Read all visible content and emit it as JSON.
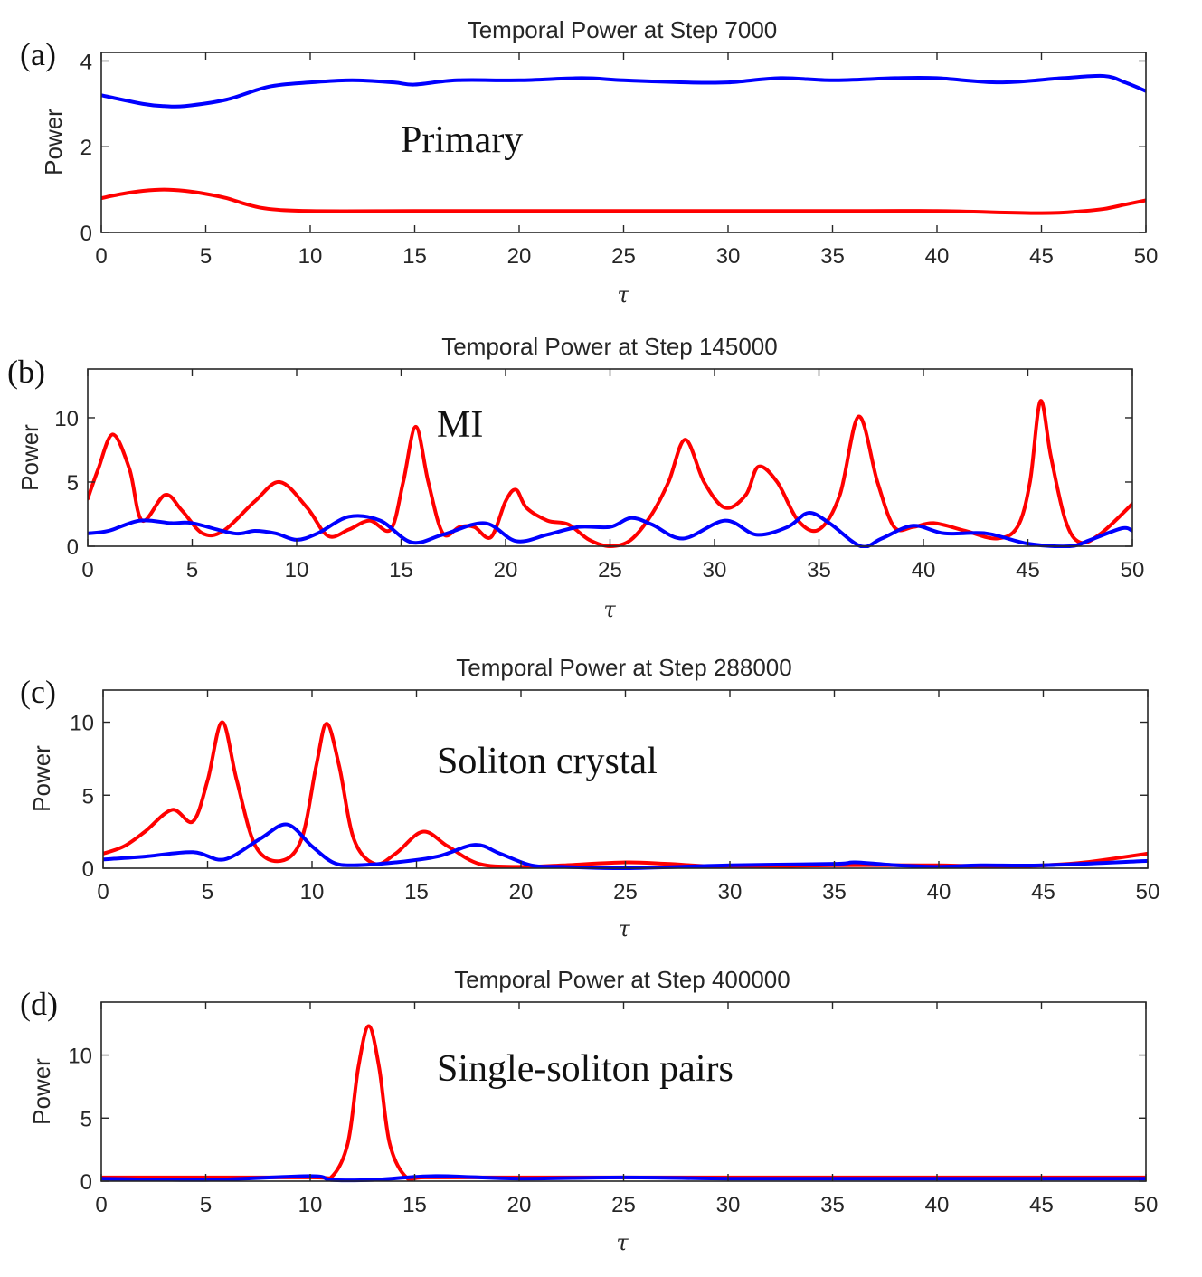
{
  "colors": {
    "series1": "#ff0000",
    "series2": "#0000ff",
    "axis": "#262626"
  },
  "chart_data": [
    {
      "type": "line",
      "panel_label": "(a)",
      "title": "Temporal Power at Step 7000",
      "annotation": "Primary",
      "xlabel": "τ",
      "ylabel": "Power",
      "xlim": [
        0,
        50
      ],
      "ylim": [
        0,
        4.2
      ],
      "xticks": [
        "0",
        "5",
        "10",
        "15",
        "20",
        "25",
        "30",
        "35",
        "40",
        "45",
        "50"
      ],
      "yticks": [
        0,
        2,
        4
      ],
      "series": [
        {
          "name": "blue",
          "color": "#0000ff",
          "x": [
            0,
            2,
            3,
            4,
            6,
            8,
            10,
            12,
            14,
            15,
            17,
            20,
            23,
            25,
            28,
            30,
            32.5,
            35,
            38,
            40,
            43,
            46,
            48,
            49,
            50
          ],
          "y": [
            3.2,
            3.0,
            2.95,
            2.95,
            3.1,
            3.4,
            3.5,
            3.55,
            3.5,
            3.45,
            3.55,
            3.55,
            3.6,
            3.55,
            3.5,
            3.5,
            3.6,
            3.55,
            3.6,
            3.6,
            3.5,
            3.6,
            3.65,
            3.5,
            3.3
          ]
        },
        {
          "name": "red",
          "color": "#ff0000",
          "x": [
            0,
            1,
            2,
            3,
            4,
            5,
            6,
            7,
            8,
            10,
            15,
            20,
            25,
            30,
            35,
            40,
            45,
            47,
            48,
            49,
            50
          ],
          "y": [
            0.8,
            0.9,
            0.97,
            1.0,
            0.97,
            0.9,
            0.8,
            0.65,
            0.55,
            0.5,
            0.5,
            0.5,
            0.5,
            0.5,
            0.5,
            0.5,
            0.45,
            0.5,
            0.55,
            0.65,
            0.75
          ]
        }
      ]
    },
    {
      "type": "line",
      "panel_label": "(b)",
      "title": "Temporal Power at Step 145000",
      "annotation": "MI",
      "xlabel": "τ",
      "ylabel": "Power",
      "xlim": [
        0,
        50
      ],
      "ylim": [
        0,
        13.8
      ],
      "xticks": [
        "0",
        "5",
        "10",
        "15",
        "20",
        "25",
        "30",
        "35",
        "40",
        "45",
        "50"
      ],
      "yticks": [
        0,
        5,
        10
      ],
      "series": [
        {
          "name": "red",
          "color": "#ff0000",
          "x": [
            0,
            0.5,
            1.2,
            2,
            2.6,
            3.7,
            4.5,
            5.5,
            6.5,
            8,
            9.2,
            10.5,
            11.5,
            12.5,
            13.5,
            14.5,
            15.1,
            15.7,
            16.3,
            17,
            17.8,
            18.5,
            19.3,
            20,
            20.5,
            21,
            22,
            23,
            24,
            25,
            26,
            27,
            27.8,
            28.6,
            29.5,
            30.5,
            31.5,
            32.1,
            33,
            34,
            35,
            36,
            36.9,
            37.8,
            38.6,
            39.5,
            40.5,
            42,
            43.5,
            44.5,
            45.1,
            45.6,
            46.1,
            46.8,
            47.5,
            48.5,
            50
          ],
          "y": [
            3.7,
            6,
            8.7,
            6,
            2,
            4.0,
            2.8,
            1.0,
            1.2,
            3.5,
            5.0,
            3.0,
            0.8,
            1.3,
            2.0,
            1.3,
            5.0,
            9.3,
            5.0,
            1.0,
            1.5,
            1.5,
            0.7,
            3.5,
            4.4,
            3.0,
            2.0,
            1.7,
            0.5,
            0.0,
            0.5,
            2.5,
            5.0,
            8.3,
            5.0,
            3.0,
            4.0,
            6.2,
            5.0,
            2.0,
            1.3,
            4.0,
            10.1,
            5.0,
            1.5,
            1.5,
            1.8,
            1.2,
            0.6,
            1.5,
            5.0,
            11.3,
            7.0,
            2.0,
            0.3,
            1.0,
            3.3
          ]
        },
        {
          "name": "blue",
          "color": "#0000ff",
          "x": [
            0,
            1,
            2.5,
            4,
            5,
            7,
            8,
            9,
            10,
            11,
            12.5,
            14,
            15.5,
            17,
            19,
            20.5,
            22,
            23.5,
            25,
            26,
            27,
            28.5,
            30.5,
            32,
            33.5,
            34.5,
            35.5,
            37,
            38,
            39.5,
            41,
            43,
            45,
            47,
            48,
            49.5,
            50
          ],
          "y": [
            1.0,
            1.2,
            2.0,
            1.8,
            1.8,
            1.0,
            1.2,
            1.0,
            0.5,
            1.0,
            2.3,
            2.0,
            0.3,
            0.9,
            1.8,
            0.4,
            0.9,
            1.5,
            1.5,
            2.2,
            1.7,
            0.6,
            2.0,
            0.9,
            1.5,
            2.6,
            1.8,
            0.0,
            0.6,
            1.6,
            1.0,
            1.0,
            0.2,
            0.0,
            0.5,
            1.4,
            1.2
          ]
        }
      ]
    },
    {
      "type": "line",
      "panel_label": "(c)",
      "title": "Temporal Power at Step 288000",
      "annotation": "Soliton crystal",
      "xlabel": "τ",
      "ylabel": "Power",
      "xlim": [
        0,
        50
      ],
      "ylim": [
        0,
        12.2
      ],
      "xticks": [
        "0",
        "5",
        "10",
        "15",
        "20",
        "25",
        "30",
        "35",
        "40",
        "45",
        "50"
      ],
      "yticks": [
        0,
        5,
        10
      ],
      "series": [
        {
          "name": "red",
          "color": "#ff0000",
          "x": [
            0,
            1,
            2,
            3.3,
            4.3,
            5.0,
            5.7,
            6.4,
            7.3,
            8.5,
            9.5,
            10.2,
            10.7,
            11.3,
            12,
            13,
            14,
            15.3,
            16.5,
            18,
            20,
            22,
            25,
            27,
            30,
            35,
            40,
            43,
            45,
            47,
            50
          ],
          "y": [
            1.0,
            1.5,
            2.5,
            4.0,
            3.2,
            6.0,
            10.0,
            6.0,
            1.5,
            0.5,
            2.0,
            7.0,
            9.9,
            7.0,
            2.0,
            0.3,
            1.0,
            2.5,
            1.5,
            0.3,
            0.1,
            0.2,
            0.4,
            0.3,
            0.1,
            0.2,
            0.2,
            0.1,
            0.2,
            0.4,
            1.0
          ]
        },
        {
          "name": "blue",
          "color": "#0000ff",
          "x": [
            0,
            2,
            4.3,
            5.8,
            7.5,
            8.8,
            10,
            11,
            12,
            14,
            16,
            17.8,
            19,
            20.5,
            22,
            25,
            30,
            35,
            36,
            38,
            40,
            42,
            45,
            50
          ],
          "y": [
            0.6,
            0.8,
            1.1,
            0.6,
            2.0,
            3.0,
            1.5,
            0.4,
            0.2,
            0.4,
            0.8,
            1.6,
            1.0,
            0.2,
            0.1,
            0.0,
            0.2,
            0.3,
            0.4,
            0.2,
            0.1,
            0.2,
            0.2,
            0.5
          ]
        }
      ]
    },
    {
      "type": "line",
      "panel_label": "(d)",
      "title": "Temporal Power at Step 400000",
      "annotation": "Single-soliton pairs",
      "xlabel": "τ",
      "ylabel": "Power",
      "xlim": [
        0,
        50
      ],
      "ylim": [
        0,
        14.2
      ],
      "xticks": [
        "0",
        "5",
        "10",
        "15",
        "20",
        "25",
        "30",
        "35",
        "40",
        "45",
        "50"
      ],
      "yticks": [
        0,
        5,
        10
      ],
      "series": [
        {
          "name": "red",
          "color": "#ff0000",
          "x": [
            0,
            10,
            11,
            11.8,
            12.3,
            12.8,
            13.3,
            13.8,
            14.6,
            15.5,
            20,
            30,
            40,
            50
          ],
          "y": [
            0.3,
            0.3,
            0.3,
            3.0,
            9.0,
            12.3,
            9.0,
            3.0,
            0.3,
            0.3,
            0.3,
            0.3,
            0.3,
            0.3
          ]
        },
        {
          "name": "blue",
          "color": "#0000ff",
          "x": [
            0,
            5,
            10,
            11,
            13,
            16,
            20,
            25,
            30,
            35,
            40,
            45,
            50
          ],
          "y": [
            0.2,
            0.1,
            0.4,
            0.1,
            0.1,
            0.4,
            0.2,
            0.3,
            0.2,
            0.2,
            0.2,
            0.2,
            0.2
          ]
        }
      ]
    }
  ]
}
